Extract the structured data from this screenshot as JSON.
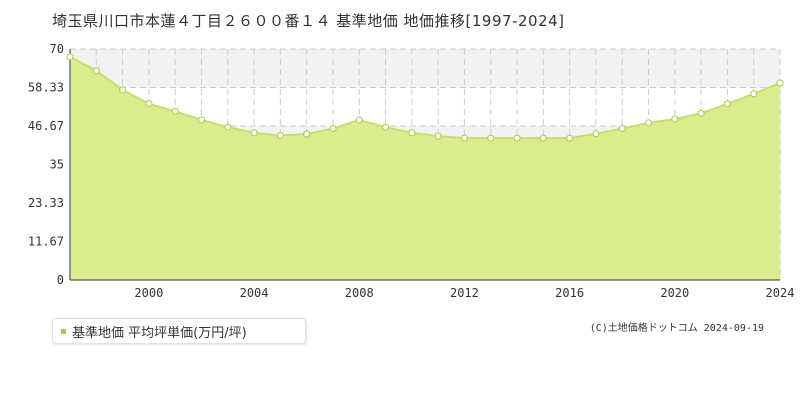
{
  "chart_title": "埼玉県川口市本蓮４丁目２６００番１４ 基準地価 地価推移[1997-2024]",
  "legend_label": "基準地価 平均坪単価(万円/坪)",
  "footer_note": "(C)土地価格ドットコム 2024-09-19",
  "colors": {
    "line": "#c5e06a",
    "fill": "#d9ec8e",
    "marker_stroke": "#a8cc3a",
    "band": "#f2f2f2",
    "grid": "#cccccc"
  },
  "chart_data": {
    "type": "area",
    "title": "埼玉県川口市本蓮４丁目２６００番１４ 基準地価 地価推移[1997-2024]",
    "xlabel": "",
    "ylabel": "",
    "xlim": [
      1997,
      2024
    ],
    "ylim": [
      0,
      70
    ],
    "y_ticks": [
      "0",
      "11.67",
      "23.33",
      "35",
      "46.67",
      "58.33",
      "70"
    ],
    "x_ticks": [
      "2000",
      "2004",
      "2008",
      "2012",
      "2016",
      "2020",
      "2024"
    ],
    "grid": true,
    "legend_position": "bottom-left",
    "series": [
      {
        "name": "基準地価 平均坪単価(万円/坪)",
        "x": [
          1997,
          1998,
          1999,
          2000,
          2001,
          2002,
          2003,
          2004,
          2005,
          2006,
          2007,
          2008,
          2009,
          2010,
          2011,
          2012,
          2013,
          2014,
          2015,
          2016,
          2017,
          2018,
          2019,
          2020,
          2021,
          2022,
          2023,
          2024
        ],
        "y": [
          67.6,
          63.4,
          57.6,
          53.4,
          51.1,
          48.5,
          46.3,
          44.6,
          43.8,
          44.2,
          45.9,
          48.5,
          46.3,
          44.6,
          43.6,
          43.0,
          43.0,
          43.0,
          43.0,
          43.0,
          44.3,
          45.9,
          47.6,
          48.8,
          50.5,
          53.4,
          56.4,
          59.7
        ]
      }
    ]
  }
}
